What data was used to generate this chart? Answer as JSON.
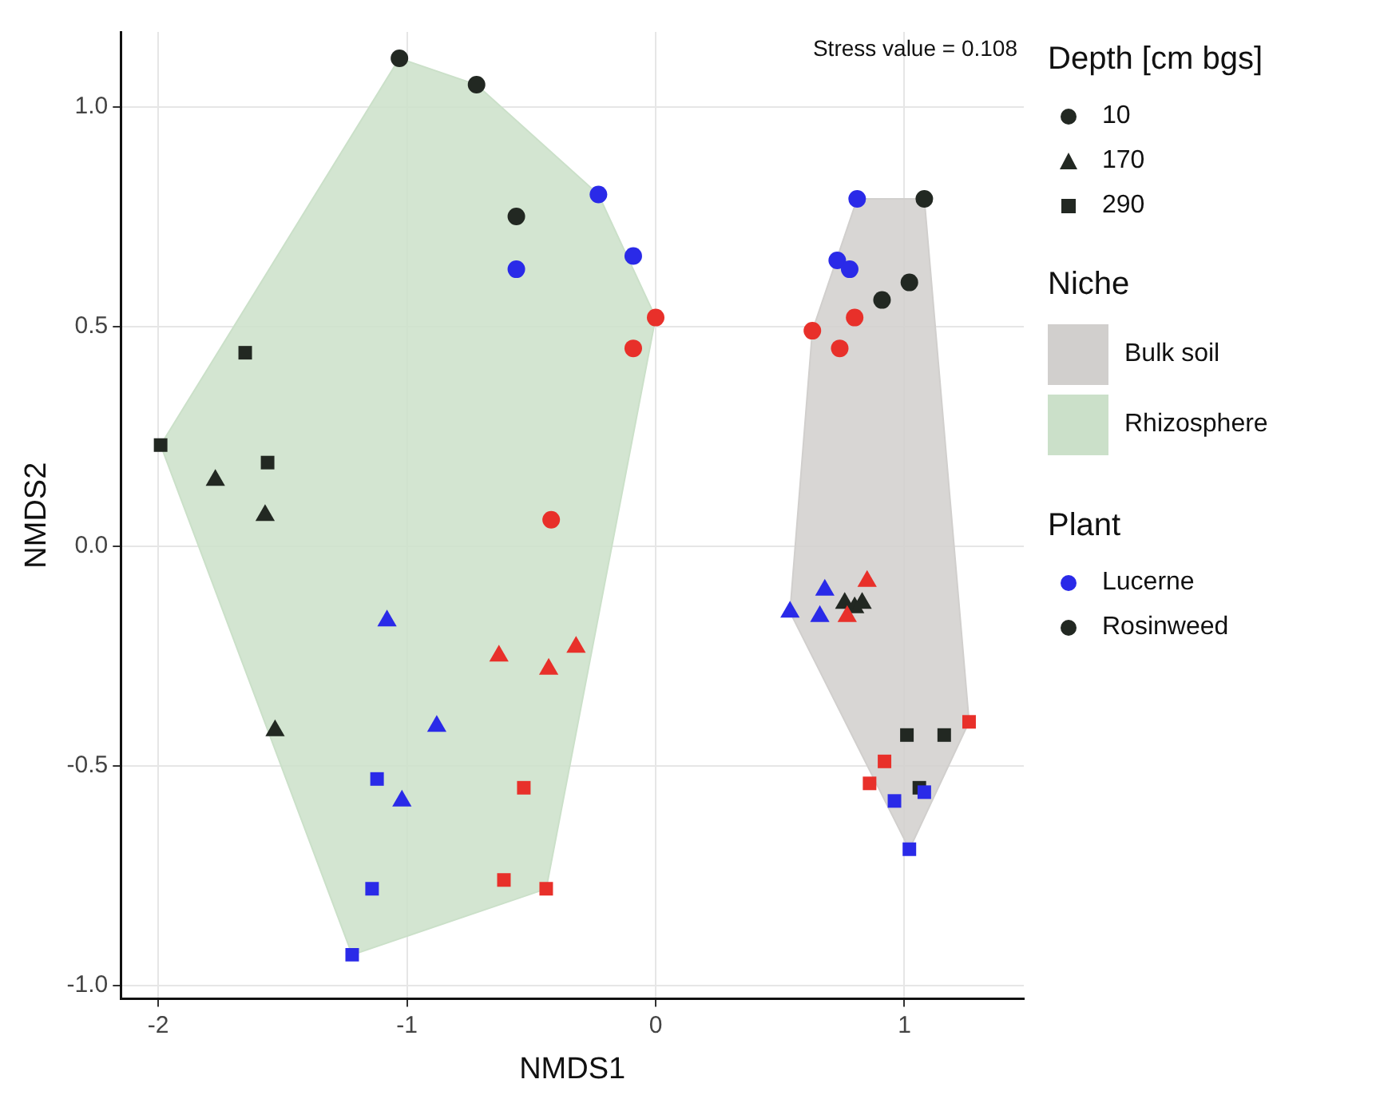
{
  "chart_data": {
    "type": "scatter",
    "xlabel": "NMDS1",
    "ylabel": "NMDS2",
    "legend_title": "Depth [cm bgs]",
    "annotations": [
      "Stress value = 0.108",
      "10",
      "170",
      "290",
      "Niche",
      "Plant"
    ],
    "xlim": [
      -2.15,
      1.48
    ],
    "ylim": [
      -1.03,
      1.17
    ],
    "xticks": [
      -2,
      -1,
      0,
      1
    ],
    "yticks": [
      {
        "value": -1,
        "label": "-1.0"
      },
      {
        "value": -0.5,
        "label": "-0.5"
      },
      {
        "value": 0,
        "label": "0.0"
      },
      {
        "value": 0.5,
        "label": "0.5"
      },
      {
        "value": 1,
        "label": "1.0"
      }
    ],
    "grid": true,
    "legend": "right",
    "series": [
      {
        "type": "area",
        "name": "Bulk soil",
        "color": "#d1cfcd",
        "x": [
          0.81,
          1.08,
          1.26,
          1.02,
          0.54,
          0.63,
          0.81
        ],
        "values": [
          0.79,
          0.79,
          -0.4,
          -0.69,
          -0.15,
          0.49,
          0.79
        ]
      },
      {
        "type": "area",
        "name": "Rhizosphere",
        "color": "#cbe0c9",
        "x": [
          -1.99,
          -1.03,
          -0.72,
          -0.23,
          0.0,
          -0.44,
          -1.22,
          -1.99
        ],
        "values": [
          0.23,
          1.11,
          1.05,
          0.8,
          0.52,
          -0.78,
          -0.93,
          0.23
        ]
      },
      {
        "color": "#e8302a",
        "marker": "circle",
        "x": [
          0.0,
          -0.09,
          -0.42,
          0.63,
          0.8,
          0.74
        ],
        "values": [
          0.52,
          0.45,
          0.06,
          0.49,
          0.52,
          0.45
        ]
      },
      {
        "color": "#e8302a",
        "marker": "triangle",
        "x": [
          -0.63,
          -0.32,
          -0.43,
          0.85,
          0.77
        ],
        "values": [
          -0.25,
          -0.23,
          -0.28,
          -0.08,
          -0.16
        ]
      },
      {
        "color": "#e8302a",
        "marker": "square",
        "x": [
          -0.53,
          -0.61,
          -0.44,
          1.26,
          0.92,
          0.86
        ],
        "values": [
          -0.55,
          -0.76,
          -0.78,
          -0.4,
          -0.49,
          -0.54
        ]
      },
      {
        "name": "Lucerne",
        "color": "#2a2ae8",
        "marker": "circle",
        "x": [
          -0.23,
          -0.09,
          -0.56,
          0.81,
          0.73,
          0.78
        ],
        "values": [
          0.8,
          0.66,
          0.63,
          0.79,
          0.65,
          0.63
        ]
      },
      {
        "color": "#2a2ae8",
        "marker": "triangle",
        "x": [
          -1.08,
          -0.88,
          -1.02,
          0.54,
          0.68,
          0.66
        ],
        "values": [
          -0.17,
          -0.41,
          -0.58,
          -0.15,
          -0.1,
          -0.16
        ]
      },
      {
        "color": "#2a2ae8",
        "marker": "square",
        "x": [
          -1.12,
          -1.14,
          -1.22,
          0.96,
          1.08,
          1.02
        ],
        "values": [
          -0.53,
          -0.78,
          -0.93,
          -0.58,
          -0.56,
          -0.69
        ]
      },
      {
        "name": "Rosinweed",
        "color": "#222822",
        "marker": "circle",
        "x": [
          -1.03,
          -0.72,
          -0.56,
          1.08,
          1.02,
          0.91
        ],
        "values": [
          1.11,
          1.05,
          0.75,
          0.79,
          0.6,
          0.56
        ]
      },
      {
        "color": "#222822",
        "marker": "triangle",
        "x": [
          -1.77,
          -1.57,
          -1.53,
          0.76,
          0.8,
          0.83
        ],
        "values": [
          0.15,
          0.07,
          -0.42,
          -0.13,
          -0.14,
          -0.13
        ]
      },
      {
        "color": "#222822",
        "marker": "square",
        "x": [
          -1.65,
          -1.99,
          -1.56,
          1.01,
          1.16,
          1.06
        ],
        "values": [
          0.44,
          0.23,
          0.19,
          -0.43,
          -0.43,
          -0.55
        ]
      }
    ]
  }
}
